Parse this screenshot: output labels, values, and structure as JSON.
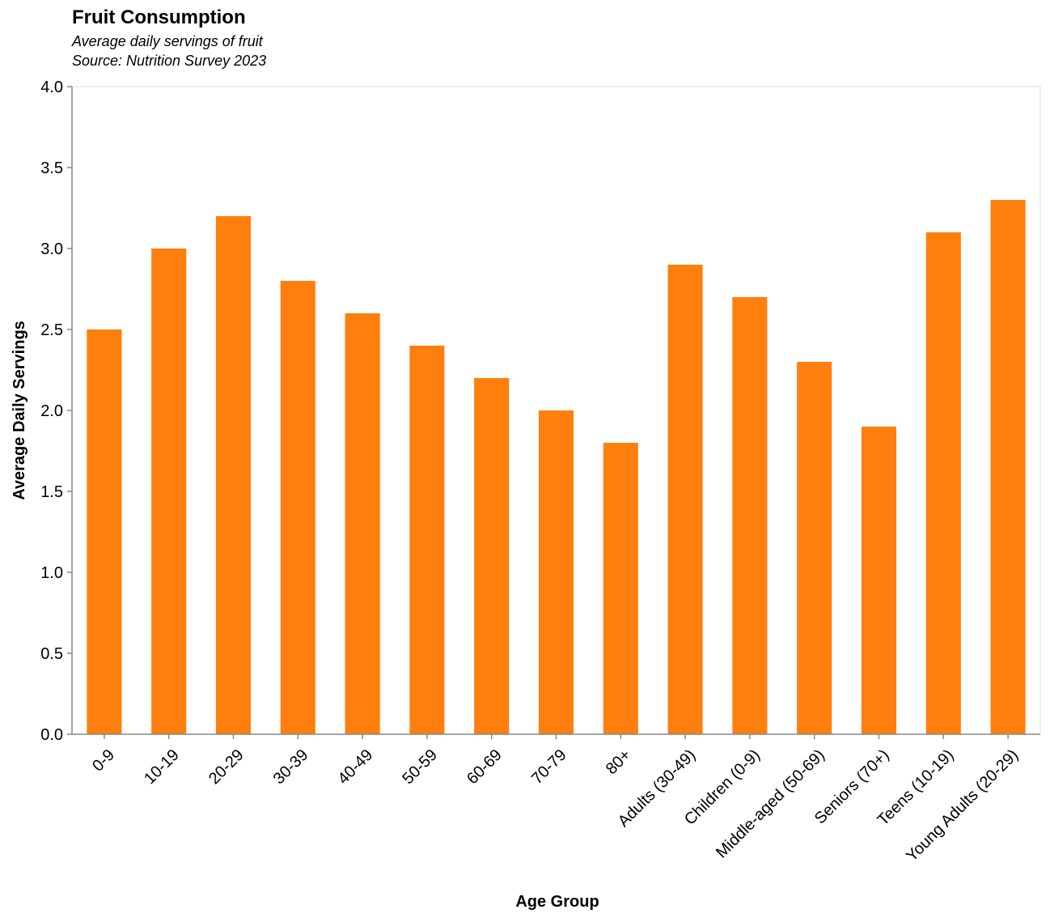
{
  "chart_data": {
    "type": "bar",
    "title": "Fruit Consumption",
    "subtitle": [
      "Average daily servings of fruit",
      "Source: Nutrition Survey 2023"
    ],
    "xlabel": "Age Group",
    "ylabel": "Average Daily Servings",
    "categories": [
      "0-9",
      "10-19",
      "20-29",
      "30-39",
      "40-49",
      "50-59",
      "60-69",
      "70-79",
      "80+",
      "Adults (30-49)",
      "Children (0-9)",
      "Middle-aged (50-69)",
      "Seniors (70+)",
      "Teens (10-19)",
      "Young Adults (20-29)"
    ],
    "values": [
      2.5,
      3.0,
      3.2,
      2.8,
      2.6,
      2.4,
      2.2,
      2.0,
      1.8,
      2.9,
      2.7,
      2.3,
      1.9,
      3.1,
      3.3
    ],
    "ylim": [
      0,
      4.0
    ],
    "yticks": [
      "0.0",
      "0.5",
      "1.0",
      "1.5",
      "2.0",
      "2.5",
      "3.0",
      "3.5",
      "4.0"
    ],
    "bar_color": "#ff7f0e",
    "grid": false,
    "legend": "none"
  }
}
